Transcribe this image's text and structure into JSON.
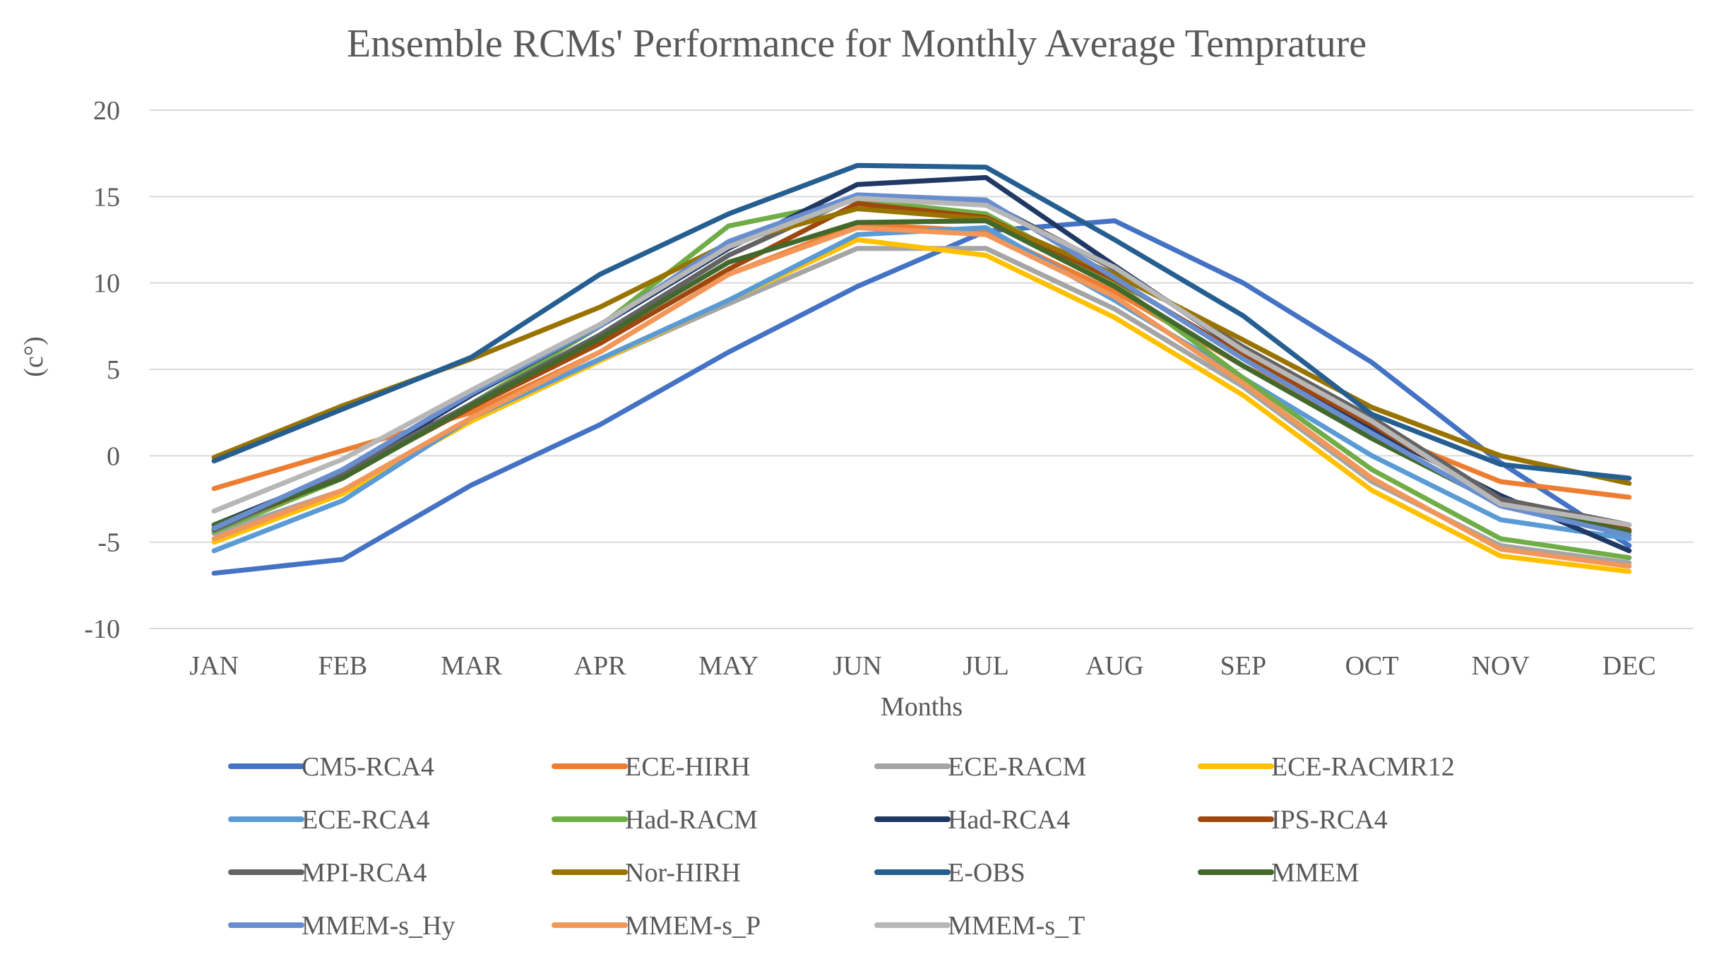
{
  "chart_data": {
    "type": "line",
    "title": "Ensemble RCMs' Performance for Monthly Average  Temprature",
    "xlabel": "Months",
    "ylabel": "(c°)",
    "ylim": [
      -10,
      20
    ],
    "yticks": [
      -10,
      -5,
      0,
      5,
      10,
      15,
      20
    ],
    "grid": true,
    "legend_position": "bottom",
    "categories": [
      "JAN",
      "FEB",
      "MAR",
      "APR",
      "MAY",
      "JUN",
      "JUL",
      "AUG",
      "SEP",
      "OCT",
      "NOV",
      "DEC"
    ],
    "series": [
      {
        "name": "CM5-RCA4",
        "color": "#4472c4",
        "values": [
          -6.8,
          -6.0,
          -1.7,
          1.8,
          6.0,
          9.8,
          13.0,
          13.6,
          10.0,
          5.4,
          -0.4,
          -5.2
        ]
      },
      {
        "name": "ECE-HIRH",
        "color": "#ed7d31",
        "values": [
          -1.9,
          0.3,
          2.5,
          6.0,
          10.5,
          13.4,
          13.0,
          9.5,
          5.2,
          1.5,
          -1.5,
          -2.4
        ]
      },
      {
        "name": "ECE-RACM",
        "color": "#a5a5a5",
        "values": [
          -4.5,
          -2.0,
          2.0,
          5.5,
          8.8,
          12.0,
          12.0,
          8.5,
          4.0,
          -1.5,
          -5.2,
          -6.2
        ]
      },
      {
        "name": "ECE-RACMR12",
        "color": "#ffc000",
        "values": [
          -5.0,
          -2.2,
          2.0,
          5.5,
          9.0,
          12.5,
          11.6,
          8.0,
          3.5,
          -2.0,
          -5.8,
          -6.7
        ]
      },
      {
        "name": "ECE-RCA4",
        "color": "#5b9bd5",
        "values": [
          -5.5,
          -2.6,
          2.2,
          5.6,
          9.0,
          12.8,
          13.2,
          9.0,
          4.5,
          0.0,
          -3.7,
          -4.8
        ]
      },
      {
        "name": "Had-RACM",
        "color": "#70ad47",
        "values": [
          -4.4,
          -1.3,
          3.0,
          7.5,
          13.3,
          14.8,
          14.0,
          10.0,
          4.5,
          -0.8,
          -4.8,
          -5.9
        ]
      },
      {
        "name": "Had-RCA4",
        "color": "#203864",
        "values": [
          -4.0,
          -1.0,
          3.5,
          7.5,
          12.0,
          15.7,
          16.1,
          11.0,
          6.0,
          1.5,
          -2.3,
          -5.5
        ]
      },
      {
        "name": "IPS-RCA4",
        "color": "#9e480e",
        "values": [
          -4.2,
          -1.2,
          2.8,
          6.5,
          10.8,
          14.6,
          13.8,
          10.2,
          5.8,
          1.8,
          -2.6,
          -4.3
        ]
      },
      {
        "name": "MPI-RCA4",
        "color": "#636363",
        "values": [
          -4.3,
          -1.0,
          3.0,
          7.0,
          11.6,
          15.0,
          14.7,
          10.8,
          6.3,
          2.2,
          -2.5,
          -4.0
        ]
      },
      {
        "name": "Nor-HIRH",
        "color": "#997300",
        "values": [
          -0.1,
          2.9,
          5.6,
          8.6,
          12.3,
          14.3,
          13.7,
          10.5,
          6.7,
          2.8,
          0.0,
          -1.6
        ]
      },
      {
        "name": "E-OBS",
        "color": "#255e91",
        "values": [
          -0.3,
          2.7,
          5.7,
          10.5,
          14.0,
          16.8,
          16.7,
          12.5,
          8.1,
          2.4,
          -0.5,
          -1.3
        ]
      },
      {
        "name": "MMEM",
        "color": "#43682b",
        "values": [
          -4.0,
          -1.3,
          2.9,
          6.8,
          11.2,
          13.5,
          13.6,
          9.8,
          5.2,
          1.0,
          -2.8,
          -4.4
        ]
      },
      {
        "name": "MMEM-s_Hy",
        "color": "#698ed0",
        "values": [
          -4.2,
          -0.8,
          3.6,
          7.5,
          12.4,
          15.1,
          14.8,
          10.3,
          5.6,
          1.3,
          -2.9,
          -4.6
        ]
      },
      {
        "name": "MMEM-s_P",
        "color": "#f1975a",
        "values": [
          -4.8,
          -2.0,
          2.2,
          6.0,
          10.5,
          13.2,
          12.8,
          9.2,
          4.2,
          -1.3,
          -5.4,
          -6.4
        ]
      },
      {
        "name": "MMEM-s_T",
        "color": "#b7b7b7",
        "values": [
          -3.2,
          -0.2,
          3.8,
          7.6,
          12.1,
          14.9,
          14.5,
          10.9,
          6.1,
          2.0,
          -2.8,
          -4.0
        ]
      }
    ]
  }
}
